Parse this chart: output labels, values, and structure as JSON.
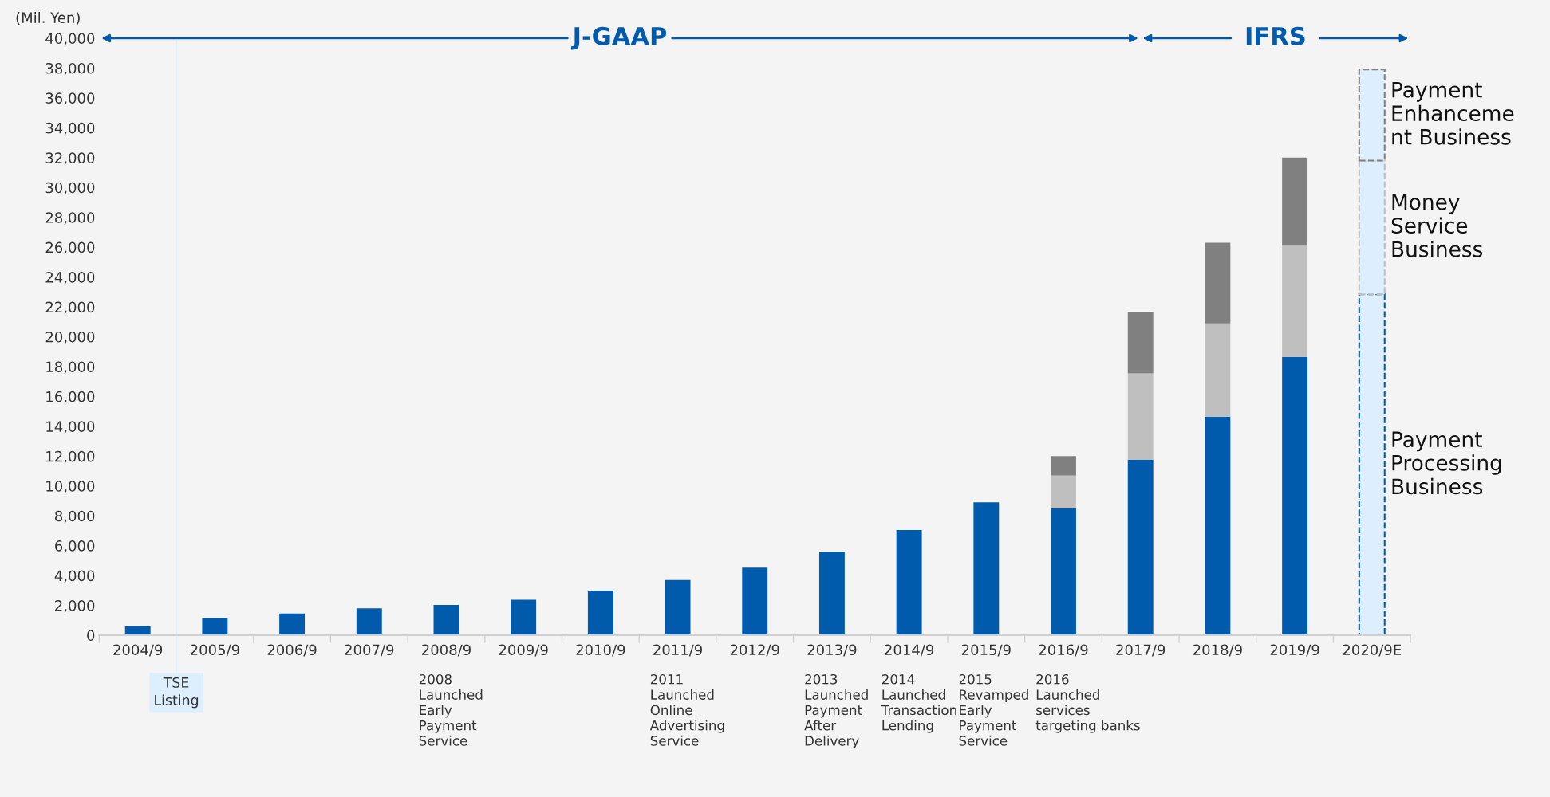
{
  "chart_data": {
    "type": "bar",
    "stacked": true,
    "ylabel": "(Mil. Yen)",
    "categories": [
      "2004/9",
      "2005/9",
      "2006/9",
      "2007/9",
      "2008/9",
      "2009/9",
      "2010/9",
      "2011/9",
      "2012/9",
      "2013/9",
      "2014/9",
      "2015/9",
      "2016/9",
      "2017/9",
      "2018/9",
      "2019/9",
      "2020/9E"
    ],
    "series": [
      {
        "name": "Payment\nProcessing\nBusiness",
        "color": "#005bac",
        "colors": [
          "#005bac",
          "#005bac",
          "#005bac",
          "#005bac",
          "#005bac",
          "#005bac",
          "#005bac",
          "#005bac",
          "#005bac",
          "#005bac",
          "#005bac",
          "#005bac",
          "#005bac",
          "#005bac",
          "#005bac",
          "#005bac",
          "#ddeeff"
        ],
        "values": [
          600,
          1150,
          1450,
          1800,
          2030,
          2370,
          2990,
          3700,
          4520,
          5600,
          7050,
          8900,
          8500,
          11750,
          14650,
          18650,
          22850
        ]
      },
      {
        "name": "Money\nService\nBusiness",
        "color": "#bfbfbf",
        "colors": [
          "#bfbfbf",
          "#bfbfbf",
          "#bfbfbf",
          "#bfbfbf",
          "#bfbfbf",
          "#bfbfbf",
          "#bfbfbf",
          "#bfbfbf",
          "#bfbfbf",
          "#bfbfbf",
          "#bfbfbf",
          "#bfbfbf",
          "#bfbfbf",
          "#bfbfbf",
          "#bfbfbf",
          "#bfbfbf",
          "#ddeeff"
        ],
        "values": [
          null,
          null,
          null,
          null,
          null,
          null,
          null,
          null,
          null,
          null,
          null,
          null,
          2200,
          5800,
          6250,
          7450,
          8950
        ]
      },
      {
        "name": "Payment\nEnhanceme\nnt Business",
        "color": "#808080",
        "colors": [
          "#808080",
          "#808080",
          "#808080",
          "#808080",
          "#808080",
          "#808080",
          "#808080",
          "#808080",
          "#808080",
          "#808080",
          "#808080",
          "#808080",
          "#808080",
          "#808080",
          "#808080",
          "#808080",
          "#ddeeff"
        ],
        "values": [
          null,
          null,
          null,
          null,
          null,
          null,
          null,
          null,
          null,
          null,
          null,
          null,
          1300,
          4100,
          5400,
          5900,
          6100
        ]
      }
    ],
    "ylim": [
      0,
      40000
    ],
    "yticks": [
      {
        "value": 0,
        "label": "0"
      },
      {
        "value": 2000,
        "label": "2,000"
      },
      {
        "value": 4000,
        "label": "4,000"
      },
      {
        "value": 6000,
        "label": "6,000"
      },
      {
        "value": 8000,
        "label": "8,000"
      },
      {
        "value": 10000,
        "label": "10,000"
      },
      {
        "value": 12000,
        "label": "12,000"
      },
      {
        "value": 14000,
        "label": "14,000"
      },
      {
        "value": 16000,
        "label": "16,000"
      },
      {
        "value": 18000,
        "label": "18,000"
      },
      {
        "value": 20000,
        "label": "20,000"
      },
      {
        "value": 22000,
        "label": "22,000"
      },
      {
        "value": 24000,
        "label": "24,000"
      },
      {
        "value": 26000,
        "label": "26,000"
      },
      {
        "value": 28000,
        "label": "28,000"
      },
      {
        "value": 30000,
        "label": "30,000"
      },
      {
        "value": 32000,
        "label": "32,000"
      },
      {
        "value": 34000,
        "label": "34,000"
      },
      {
        "value": 36000,
        "label": "36,000"
      },
      {
        "value": 38000,
        "label": "38,000"
      },
      {
        "value": 40000,
        "label": "40,000"
      }
    ],
    "grid": false,
    "annotations": [
      "J-GAAP",
      "IFRS",
      "TSE\nListing",
      "2008\nLaunched\nEarly\nPayment\nService",
      "2011\nLaunched\nOnline\nAdvertising\nService",
      "2013\nLaunched\nPayment\nAfter\nDelivery",
      "2014\nLaunched\nTransaction\nLending",
      "2015\nRevamped\nEarly\nPayment\nService",
      "2016\nLaunched\nservices\ntargeting banks"
    ]
  }
}
